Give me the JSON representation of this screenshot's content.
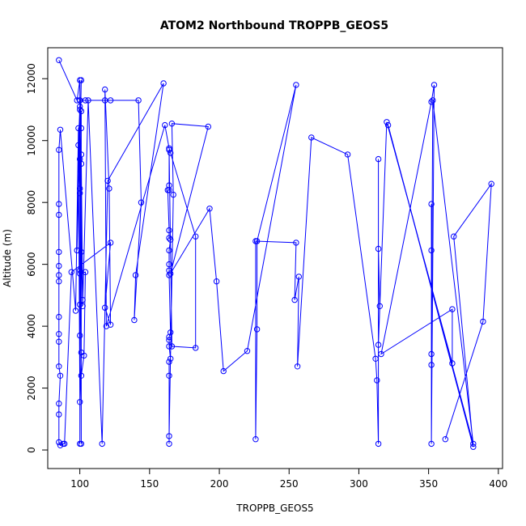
{
  "chart_data": {
    "type": "line",
    "title": "ATOM2 Northbound TROPPB_GEOS5",
    "xlabel": "TROPPB_GEOS5",
    "ylabel": "Altitude (m)",
    "xlim": [
      77,
      403
    ],
    "ylim": [
      -600,
      13000
    ],
    "xticks": [
      100,
      150,
      200,
      250,
      300,
      350,
      400
    ],
    "yticks": [
      0,
      2000,
      4000,
      6000,
      8000,
      10000,
      12000
    ],
    "grid": false,
    "legend": "none",
    "series_color": "#0000ff",
    "markers": "open-circle",
    "series": [
      {
        "name": "",
        "points": [
          [
            85,
            12600
          ],
          [
            98,
            11300
          ],
          [
            100,
            11950
          ],
          [
            100,
            11300
          ],
          [
            104,
            11300
          ],
          [
            118,
            11300
          ],
          [
            122,
            11300
          ],
          [
            142,
            11300
          ],
          [
            144,
            8000
          ],
          [
            139,
            4200
          ],
          [
            140,
            5650
          ],
          [
            160,
            11850
          ],
          [
            120,
            8700
          ],
          [
            116,
            200
          ],
          [
            106,
            11300
          ],
          [
            102,
            4650
          ],
          [
            100,
            11100
          ],
          [
            99,
            9850
          ],
          [
            100,
            1550
          ],
          [
            101,
            3150
          ],
          [
            100,
            8450
          ],
          [
            101,
            6400
          ],
          [
            100,
            4700
          ],
          [
            101,
            10400
          ],
          [
            101,
            2400
          ],
          [
            103,
            3050
          ],
          [
            104,
            5750
          ],
          [
            100,
            5700
          ],
          [
            100,
            200
          ],
          [
            100,
            9400
          ],
          [
            101,
            11950
          ],
          [
            98,
            6450
          ],
          [
            100,
            11000
          ],
          [
            101,
            10950
          ],
          [
            101,
            200
          ],
          [
            100,
            11300
          ],
          [
            100,
            5800
          ],
          [
            101,
            9250
          ],
          [
            100,
            3700
          ],
          [
            101,
            9550
          ],
          [
            102,
            4850
          ],
          [
            100,
            8300
          ],
          [
            99,
            10400
          ],
          [
            97,
            4500
          ],
          [
            86,
            10350
          ],
          [
            85,
            9700
          ],
          [
            85,
            7950
          ],
          [
            85,
            7600
          ],
          [
            85,
            6400
          ],
          [
            85,
            5950
          ],
          [
            85,
            5650
          ],
          [
            85,
            5450
          ],
          [
            85,
            4300
          ],
          [
            85,
            3750
          ],
          [
            85,
            3500
          ],
          [
            85,
            2700
          ],
          [
            86,
            2400
          ],
          [
            85,
            1500
          ],
          [
            85,
            1150
          ],
          [
            85,
            250
          ],
          [
            86,
            150
          ],
          [
            88,
            200
          ],
          [
            89,
            200
          ],
          [
            94,
            5750
          ],
          [
            122,
            6700
          ],
          [
            118,
            4600
          ],
          [
            122,
            4050
          ],
          [
            121,
            8450
          ],
          [
            118,
            11650
          ],
          [
            119,
            4000
          ],
          [
            161,
            10500
          ],
          [
            164,
            9750
          ],
          [
            165,
            9600
          ],
          [
            183,
            6900
          ],
          [
            183,
            3300
          ],
          [
            166,
            3350
          ],
          [
            164,
            9700
          ],
          [
            164,
            8550
          ],
          [
            164,
            8400
          ],
          [
            163,
            8400
          ],
          [
            164,
            7100
          ],
          [
            164,
            6850
          ],
          [
            165,
            6800
          ],
          [
            164,
            6450
          ],
          [
            164,
            6000
          ],
          [
            164,
            5800
          ],
          [
            164,
            5650
          ],
          [
            165,
            3800
          ],
          [
            164,
            3650
          ],
          [
            164,
            3550
          ],
          [
            164,
            3350
          ],
          [
            165,
            2950
          ],
          [
            164,
            2850
          ],
          [
            164,
            2400
          ],
          [
            164,
            200
          ],
          [
            164,
            450
          ],
          [
            167,
            8250
          ],
          [
            166,
            10550
          ],
          [
            192,
            10450
          ],
          [
            165,
            5700
          ],
          [
            193,
            7800
          ],
          [
            198,
            5450
          ],
          [
            203,
            2550
          ],
          [
            220,
            3200
          ],
          [
            255,
            11800
          ],
          [
            227,
            6750
          ],
          [
            227,
            3900
          ],
          [
            226,
            350
          ],
          [
            226,
            6750
          ],
          [
            255,
            6700
          ],
          [
            254,
            4850
          ],
          [
            257,
            5600
          ],
          [
            256,
            2700
          ],
          [
            266,
            10100
          ],
          [
            292,
            9550
          ],
          [
            312,
            2950
          ],
          [
            313,
            2250
          ],
          [
            314,
            200
          ],
          [
            314,
            9400
          ],
          [
            314,
            6500
          ],
          [
            315,
            4650
          ],
          [
            314,
            3400
          ],
          [
            320,
            10600
          ],
          [
            367,
            2800
          ],
          [
            367,
            4550
          ],
          [
            316,
            3100
          ],
          [
            352,
            11250
          ],
          [
            354,
            11800
          ],
          [
            352,
            200
          ],
          [
            352,
            2750
          ],
          [
            352,
            6450
          ],
          [
            352,
            7950
          ],
          [
            352,
            3100
          ],
          [
            353,
            11300
          ],
          [
            382,
            200
          ],
          [
            321,
            10500
          ],
          [
            382,
            100
          ],
          [
            368,
            6900
          ],
          [
            395,
            8600
          ],
          [
            389,
            4150
          ],
          [
            362,
            350
          ]
        ]
      }
    ]
  }
}
